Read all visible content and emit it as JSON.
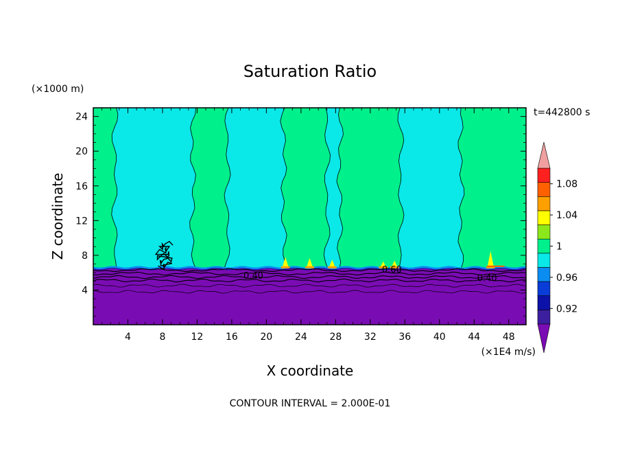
{
  "chart_data": {
    "type": "heatmap",
    "title": "Saturation Ratio",
    "xlabel": "X coordinate",
    "ylabel": "Z coordinate",
    "x_unit": "(×1E4 m/s)",
    "y_unit": "(×1000 m)",
    "time_label": "t=442800 s",
    "xlim": [
      0,
      50
    ],
    "ylim": [
      0,
      25
    ],
    "x_ticks": [
      4,
      8,
      12,
      16,
      20,
      24,
      28,
      32,
      36,
      40,
      44,
      48
    ],
    "y_ticks": [
      4,
      8,
      12,
      16,
      20,
      24
    ],
    "colorbar": {
      "levels": [
        0.9,
        0.92,
        0.94,
        0.96,
        0.98,
        1.0,
        1.02,
        1.04,
        1.06,
        1.08,
        1.1
      ],
      "colors": [
        "#3c1f9e",
        "#0c12a8",
        "#0a3cd8",
        "#0a8cf0",
        "#0ae8e8",
        "#00f08c",
        "#8ce81a",
        "#ffff00",
        "#ffa000",
        "#ff6000",
        "#ff2020"
      ],
      "under_color": "#7a0cb4",
      "over_color": "#f0a0a0",
      "tick_labels": [
        "0.92",
        "0.96",
        "1",
        "1.04",
        "1.08"
      ],
      "tick_values": [
        0.92,
        0.96,
        1.0,
        1.04,
        1.08
      ]
    },
    "lower_layer_top_z": 6.5,
    "upper_region": {
      "background_value": 0.99,
      "supersaturated_bands": [
        {
          "x0": 0,
          "x1": 2.5,
          "value": 1.01
        },
        {
          "x0": 11.5,
          "x1": 15.5,
          "value": 1.01
        },
        {
          "x0": 22,
          "x1": 27,
          "value": 1.01
        },
        {
          "x0": 28.5,
          "x1": 35.5,
          "value": 1.01
        },
        {
          "x0": 42.5,
          "x1": 50,
          "value": 1.01
        }
      ]
    },
    "contour_labels": [
      {
        "text": "0.40",
        "x": 18.5,
        "z": 5.7
      },
      {
        "text": "0.60",
        "x": 34.5,
        "z": 6.4
      },
      {
        "text": "0.40",
        "x": 45.5,
        "z": 5.4
      }
    ],
    "footer": "CONTOUR INTERVAL = 2.000E-01"
  }
}
